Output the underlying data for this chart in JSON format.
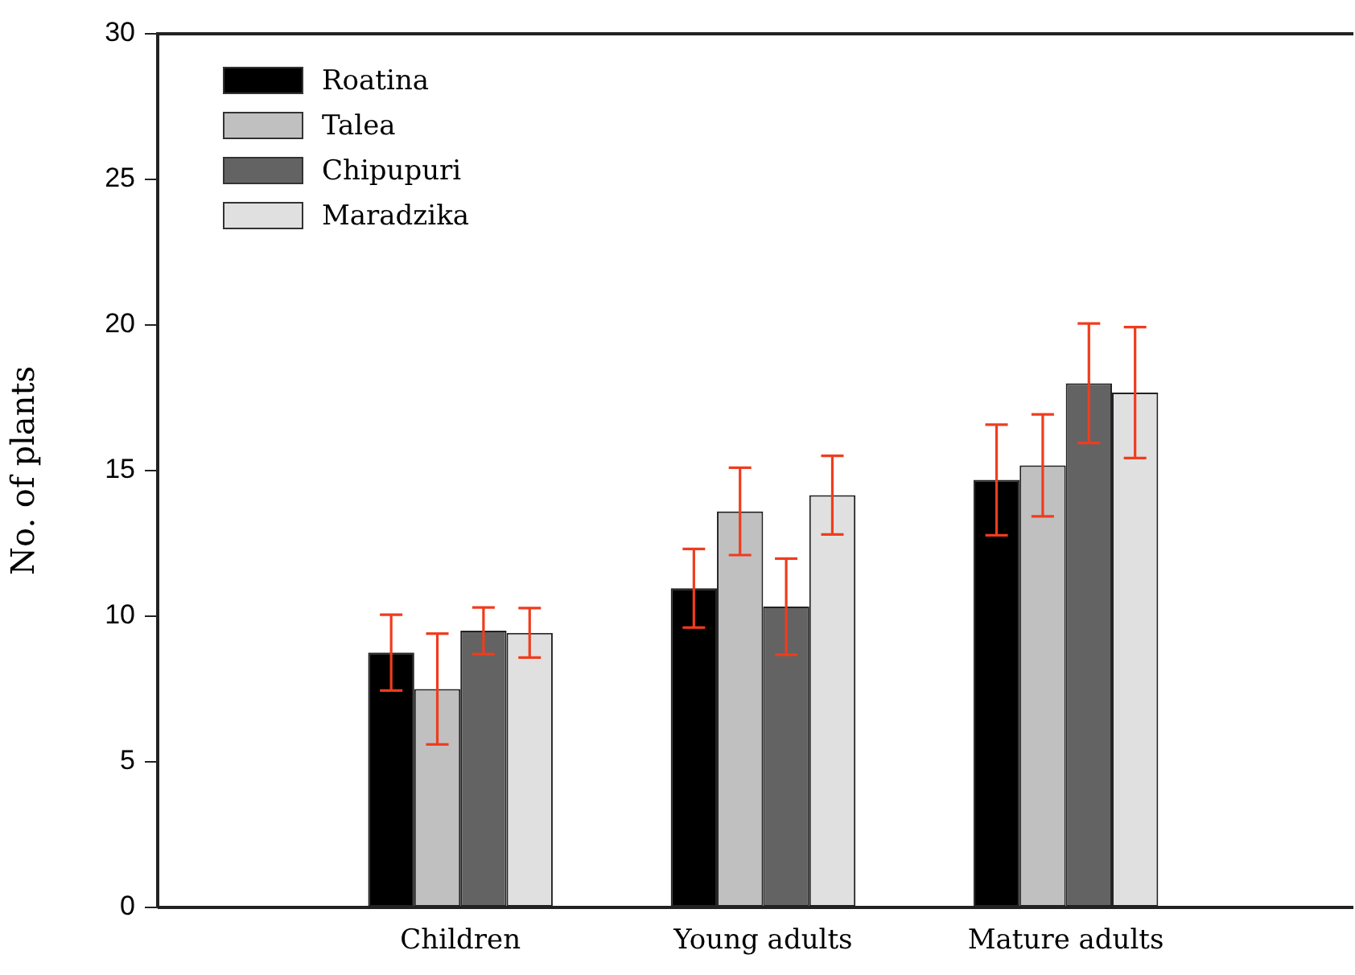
{
  "chart_data": {
    "type": "bar",
    "ylabel": "No. of plants",
    "categories": [
      "Children",
      "Young adults",
      "Mature adults"
    ],
    "ylim": [
      0,
      30
    ],
    "yticks": [
      0,
      5,
      10,
      15,
      20,
      25,
      30
    ],
    "grid": false,
    "legend": "top left",
    "series": [
      {
        "name": "Roatina",
        "color": "#000000",
        "values": [
          8.75,
          10.96,
          14.68
        ],
        "errors": [
          1.3,
          1.35,
          1.9
        ]
      },
      {
        "name": "Talea",
        "color": "#c0c0c0",
        "values": [
          7.5,
          13.6,
          15.18
        ],
        "errors": [
          1.9,
          1.5,
          1.75
        ]
      },
      {
        "name": "Chipupuri",
        "color": "#636363",
        "values": [
          9.5,
          10.33,
          18.0
        ],
        "errors": [
          0.8,
          1.65,
          2.05
        ]
      },
      {
        "name": "Maradzika",
        "color": "#e0e0e0",
        "values": [
          9.43,
          14.16,
          17.68
        ],
        "errors": [
          0.85,
          1.35,
          2.25
        ]
      }
    ]
  }
}
